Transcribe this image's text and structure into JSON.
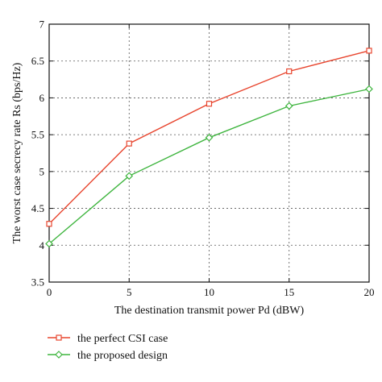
{
  "chart_data": {
    "type": "line",
    "title": "",
    "xlabel": "The destination transmit power Pd (dBW)",
    "ylabel": "The worst case secrecy rate Rs (bps/Hz)",
    "x": [
      0,
      5,
      10,
      15,
      20
    ],
    "xticks": [
      "0",
      "5",
      "10",
      "15",
      "20"
    ],
    "yticks": [
      "3.5",
      "4",
      "4.5",
      "5",
      "5.5",
      "6",
      "6.5",
      "7"
    ],
    "xlim": [
      0,
      20
    ],
    "ylim": [
      3.5,
      7
    ],
    "grid": true,
    "legend_position": "bottom",
    "series": [
      {
        "name": "the perfect CSI case",
        "values": [
          4.29,
          5.38,
          5.92,
          6.36,
          6.64
        ],
        "color": "#e8462f",
        "marker": "square"
      },
      {
        "name": "the proposed design",
        "values": [
          4.02,
          4.94,
          5.46,
          5.89,
          6.12
        ],
        "color": "#3fb53f",
        "marker": "diamond"
      }
    ]
  }
}
